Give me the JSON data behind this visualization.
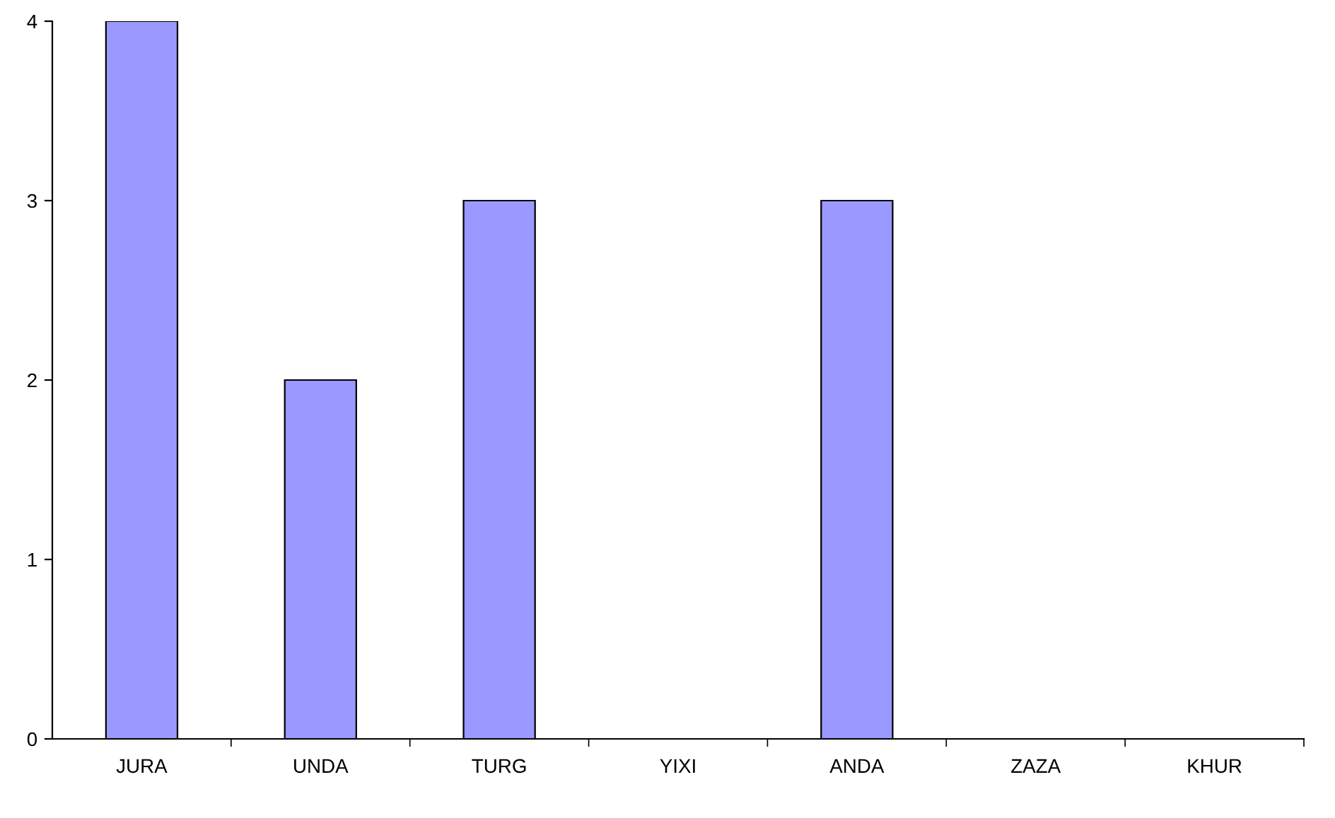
{
  "chart_data": {
    "type": "bar",
    "categories": [
      "JURA",
      "UNDA",
      "TURG",
      "YIXI",
      "ANDA",
      "ZAZA",
      "KHUR"
    ],
    "values": [
      4,
      2,
      3,
      0,
      3,
      0,
      0
    ],
    "color": "#9999ff",
    "ylim": [
      0,
      4
    ],
    "yticks": [
      0,
      1,
      2,
      3,
      4
    ],
    "grid": false,
    "legend": false
  }
}
